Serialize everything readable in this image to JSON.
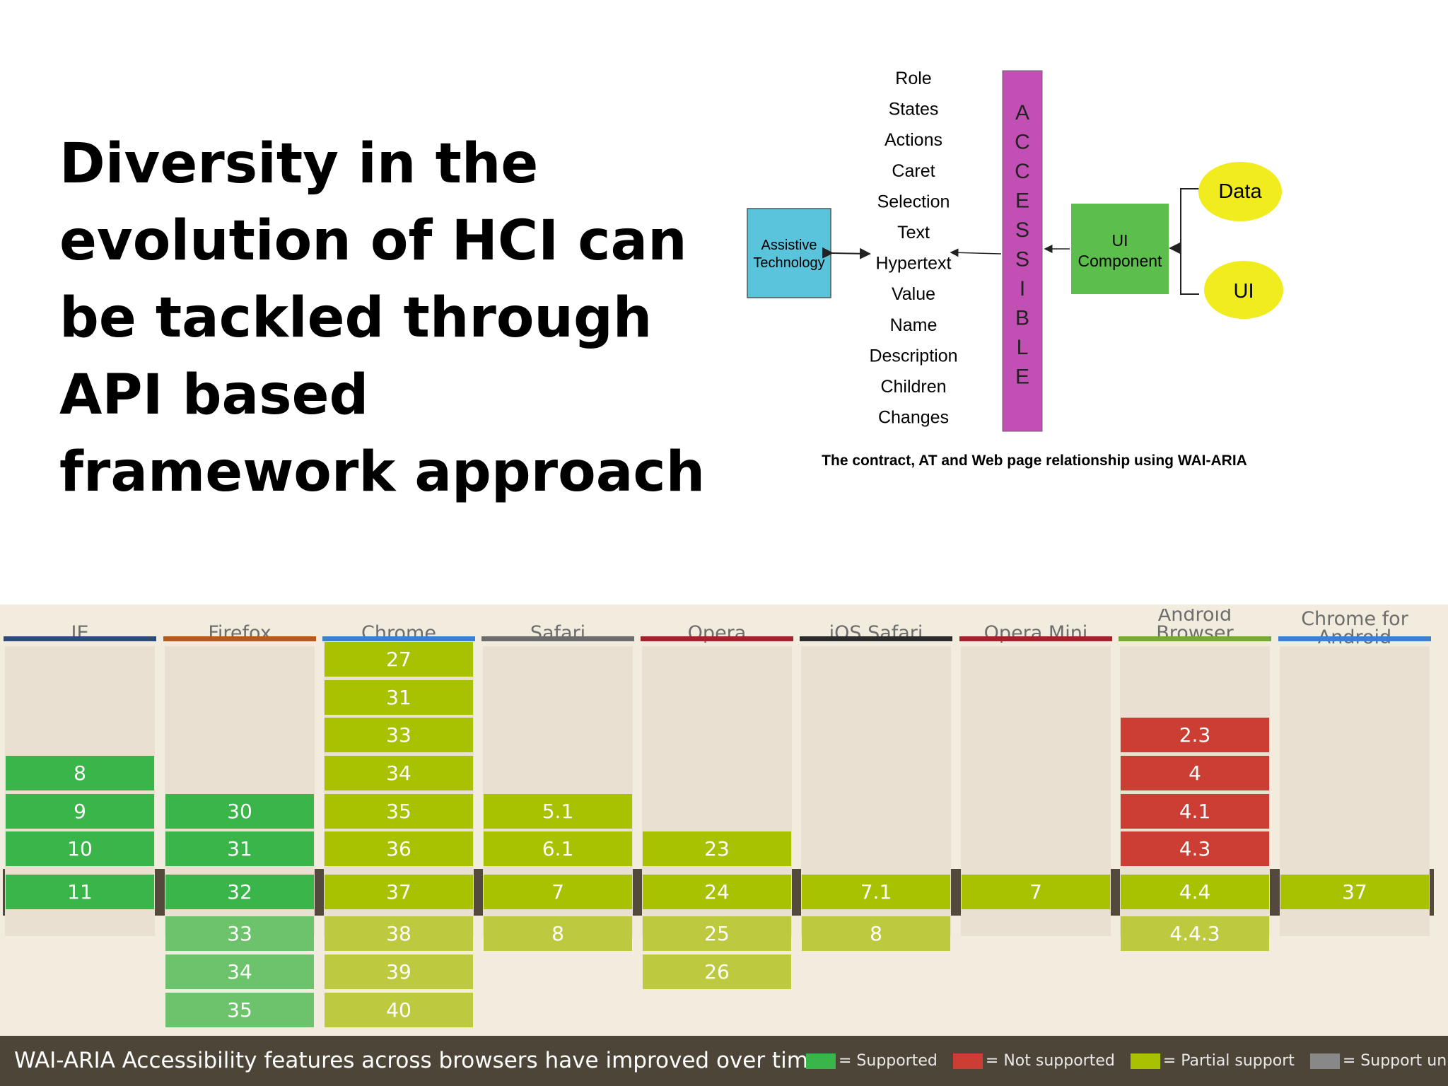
{
  "slide": {
    "headline": "Diversity in the evolution of HCI can be tackled through API based framework approach"
  },
  "diagram": {
    "contract_items": [
      "Role",
      "States",
      "Actions",
      "Caret",
      "Selection",
      "Text",
      "Hypertext",
      "Value",
      "Name",
      "Description",
      "Children",
      "Changes"
    ],
    "assistive_technology": [
      "Assistive",
      "Technology"
    ],
    "accessible_letters": [
      "A",
      "C",
      "C",
      "E",
      "S",
      "S",
      "I",
      "B",
      "L",
      "E"
    ],
    "ui_component": [
      "UI",
      "Component"
    ],
    "data_label": "Data",
    "ui_label": "UI",
    "caption": "The contract, AT and Web page relationship using WAI-ARIA",
    "colors": {
      "assistive_box": "#5bc4dd",
      "accessible_bar": "#c24fb3",
      "ui_component_box": "#5cbf4b",
      "ellipse": "#f1ec1e"
    }
  },
  "table": {
    "browsers": [
      {
        "name": "IE",
        "bar_color": "#2c4b7a",
        "cells": [
          {
            "row": 3,
            "v": "8",
            "s": "y"
          },
          {
            "row": 4,
            "v": "9",
            "s": "y"
          },
          {
            "row": 5,
            "v": "10",
            "s": "y"
          },
          {
            "row": 6,
            "v": "11",
            "s": "y"
          }
        ]
      },
      {
        "name": "Firefox",
        "bar_color": "#b35a1e",
        "cells": [
          {
            "row": 4,
            "v": "30",
            "s": "y"
          },
          {
            "row": 5,
            "v": "31",
            "s": "y"
          },
          {
            "row": 6,
            "v": "32",
            "s": "y"
          },
          {
            "row": 7,
            "v": "33",
            "s": "yf"
          },
          {
            "row": 8,
            "v": "34",
            "s": "yf"
          },
          {
            "row": 9,
            "v": "35",
            "s": "yf"
          }
        ]
      },
      {
        "name": "Chrome",
        "bar_color": "#3f7fd1",
        "cells": [
          {
            "row": 0,
            "v": "27",
            "s": "a"
          },
          {
            "row": 1,
            "v": "31",
            "s": "a"
          },
          {
            "row": 2,
            "v": "33",
            "s": "a"
          },
          {
            "row": 3,
            "v": "34",
            "s": "a"
          },
          {
            "row": 4,
            "v": "35",
            "s": "a"
          },
          {
            "row": 5,
            "v": "36",
            "s": "a"
          },
          {
            "row": 6,
            "v": "37",
            "s": "a"
          },
          {
            "row": 7,
            "v": "38",
            "s": "af"
          },
          {
            "row": 8,
            "v": "39",
            "s": "af"
          },
          {
            "row": 9,
            "v": "40",
            "s": "af"
          }
        ]
      },
      {
        "name": "Safari",
        "bar_color": "#6c6c6c",
        "cells": [
          {
            "row": 4,
            "v": "5.1",
            "s": "a"
          },
          {
            "row": 5,
            "v": "6.1",
            "s": "a"
          },
          {
            "row": 6,
            "v": "7",
            "s": "a"
          },
          {
            "row": 7,
            "v": "8",
            "s": "af"
          }
        ]
      },
      {
        "name": "Opera",
        "bar_color": "#a1232b",
        "cells": [
          {
            "row": 5,
            "v": "23",
            "s": "a"
          },
          {
            "row": 6,
            "v": "24",
            "s": "a"
          },
          {
            "row": 7,
            "v": "25",
            "s": "af"
          },
          {
            "row": 8,
            "v": "26",
            "s": "af"
          }
        ]
      },
      {
        "name": "iOS Safari",
        "bar_color": "#2b2b2b",
        "cells": [
          {
            "row": 6,
            "v": "7.1",
            "s": "a"
          },
          {
            "row": 7,
            "v": "8",
            "s": "af"
          }
        ]
      },
      {
        "name": "Opera Mini",
        "bar_color": "#a1232b",
        "cells": [
          {
            "row": 6,
            "v": "7",
            "s": "a"
          }
        ]
      },
      {
        "name": "Android Browser",
        "bar_color": "#76a83a",
        "cells": [
          {
            "row": 2,
            "v": "2.3",
            "s": "n"
          },
          {
            "row": 3,
            "v": "4",
            "s": "n"
          },
          {
            "row": 4,
            "v": "4.1",
            "s": "n"
          },
          {
            "row": 5,
            "v": "4.3",
            "s": "n"
          },
          {
            "row": 6,
            "v": "4.4",
            "s": "a"
          },
          {
            "row": 7,
            "v": "4.4.3",
            "s": "af"
          }
        ]
      },
      {
        "name": "Chrome for Android",
        "bar_color": "#3f7fd1",
        "cells": [
          {
            "row": 6,
            "v": "37",
            "s": "a"
          }
        ]
      }
    ],
    "status_colors": {
      "y": "#39b54a",
      "yf": "#6cc36b",
      "a": "#a8c100",
      "af": "#bdc93e",
      "n": "#cc3d33"
    }
  },
  "footer": {
    "caption": "WAI-ARIA Accessibility features across browsers have improved over time.",
    "legend": [
      {
        "label": "= Supported",
        "color": "#39b54a"
      },
      {
        "label": "= Not supported",
        "color": "#cc3d33"
      },
      {
        "label": "= Partial support",
        "color": "#a8c100"
      },
      {
        "label": "= Support unknown",
        "color": "#888888"
      }
    ]
  }
}
